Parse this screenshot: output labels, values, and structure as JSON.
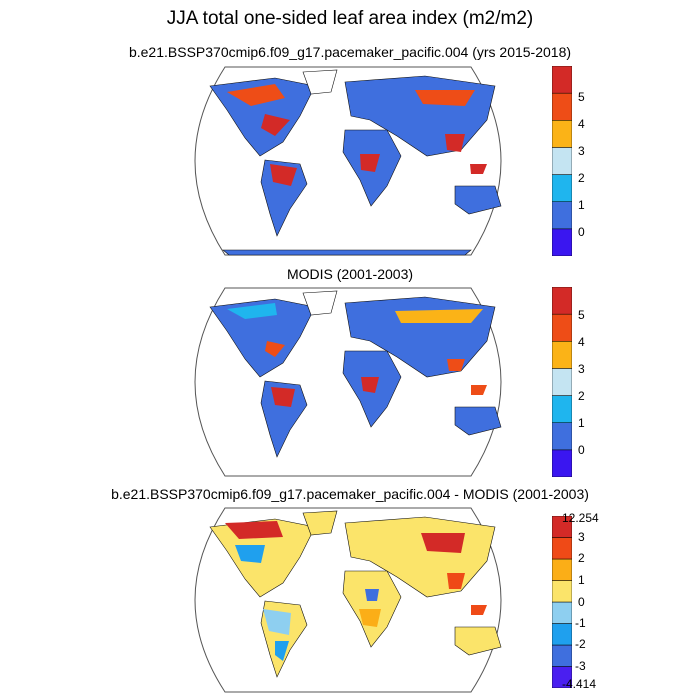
{
  "title": "JJA total one-sided leaf area index (m2/m2)",
  "colors": {
    "land_base": "#3f6fde",
    "coast": "#111111",
    "frame": "#555555"
  },
  "panels": [
    {
      "title": "b.e21.BSSP370cmip6.f09_g17.pacemaker_pacific.004 (yrs 2015-2018)",
      "colorbar": {
        "colors": [
          "#3a16f0",
          "#3f6fde",
          "#1fb5ee",
          "#c4e4f2",
          "#fbb317",
          "#ee4d17",
          "#d32a27"
        ],
        "labels": [
          "0",
          "1",
          "2",
          "3",
          "4",
          "5"
        ]
      }
    },
    {
      "title": "MODIS (2001-2003)",
      "colorbar": {
        "colors": [
          "#3a16f0",
          "#3f6fde",
          "#1fb5ee",
          "#c4e4f2",
          "#fbb317",
          "#ee4d17",
          "#d32a27"
        ],
        "labels": [
          "0",
          "1",
          "2",
          "3",
          "4",
          "5"
        ]
      }
    },
    {
      "title": "b.e21.BSSP370cmip6.f09_g17.pacemaker_pacific.004 - MODIS (2001-2003)",
      "colorbar": {
        "colors": [
          "#4a1ff0",
          "#3f6fde",
          "#1fa0ee",
          "#8ecff0",
          "#fbe46a",
          "#fbae17",
          "#ef4a17",
          "#d32a27"
        ],
        "labels": [
          "12.254",
          "3",
          "2",
          "1",
          "0",
          "-1",
          "-2",
          "-3",
          "-4.414"
        ]
      }
    }
  ]
}
